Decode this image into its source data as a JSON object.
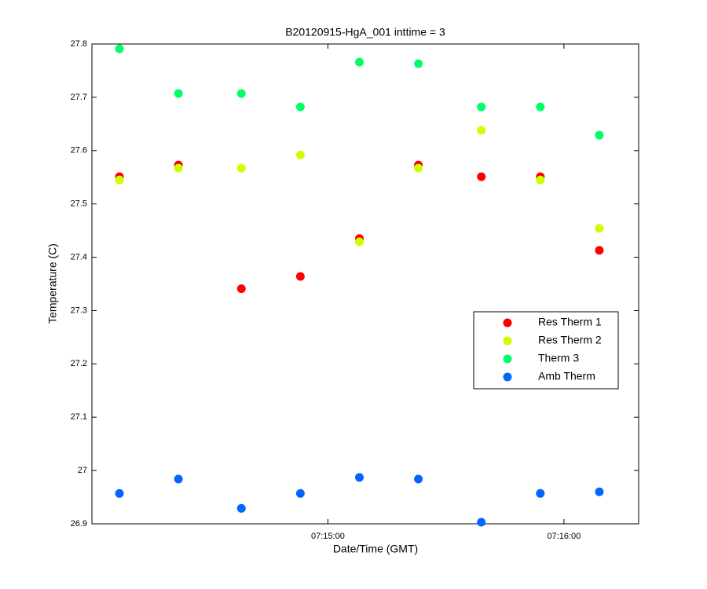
{
  "chart_data": {
    "type": "scatter",
    "title": "B20120915-HgA_001 inttime = 3",
    "x_label": "Date/Time (GMT)",
    "y_label": "Temperature (C)",
    "x": [
      "07:14:07",
      "07:14:22",
      "07:14:38",
      "07:14:53",
      "07:15:08",
      "07:15:23",
      "07:15:39",
      "07:15:54",
      "07:16:09"
    ],
    "xlim": [
      "07:14:00",
      "07:16:19"
    ],
    "xticks": [
      "07:15:00",
      "07:16:00"
    ],
    "ylim": [
      26.9,
      27.8
    ],
    "yticks": [
      26.9,
      27,
      27.1,
      27.2,
      27.3,
      27.4,
      27.5,
      27.6,
      27.7,
      27.8
    ],
    "grid": false,
    "legend": "right",
    "series": [
      {
        "name": "Res Therm 1",
        "color": "#ff0000",
        "values": [
          27.551,
          27.573,
          27.341,
          27.364,
          27.435,
          27.573,
          27.551,
          27.551,
          27.413
        ]
      },
      {
        "name": "Res Therm 2",
        "color": "#ccff00",
        "values": [
          27.545,
          27.567,
          27.567,
          27.592,
          27.429,
          27.567,
          27.638,
          27.545,
          27.454
        ]
      },
      {
        "name": "Therm 3",
        "color": "#00ff66",
        "values": [
          27.791,
          27.707,
          27.707,
          27.682,
          27.766,
          27.763,
          27.682,
          27.682,
          27.629
        ]
      },
      {
        "name": "Amb Therm",
        "color": "#0066ff",
        "values": [
          26.957,
          26.984,
          26.929,
          26.957,
          26.987,
          26.984,
          26.903,
          26.957,
          26.96
        ]
      }
    ]
  }
}
